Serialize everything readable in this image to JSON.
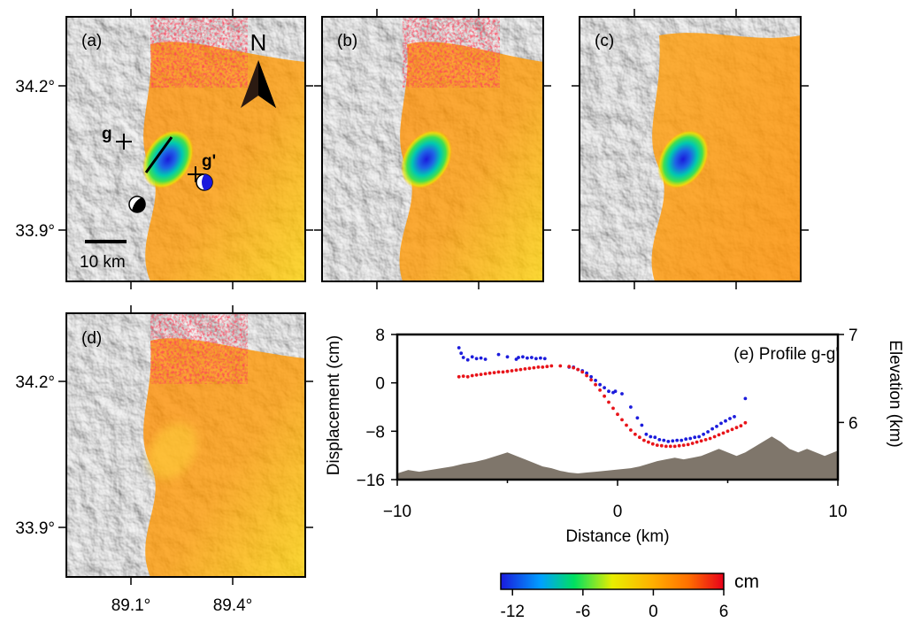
{
  "map_panels": [
    {
      "label": "(a)"
    },
    {
      "label": "(b)"
    },
    {
      "label": "(c)"
    },
    {
      "label": "(d)"
    }
  ],
  "map_axes": {
    "lat_labels": [
      "34.2°",
      "33.9°"
    ],
    "lon_labels": [
      "89.1°",
      "89.4°"
    ]
  },
  "panel_a_annotations": {
    "north": "N",
    "point_g": "g",
    "point_g_prime": "g'",
    "scale_bar": "10 km"
  },
  "colorbar": {
    "unit": "cm",
    "ticks": [
      "-12",
      "-6",
      "0",
      "6"
    ],
    "min": -13,
    "max": 6,
    "colors": [
      "#1a1adc",
      "#00c8ff",
      "#00e060",
      "#e8ee00",
      "#ffb000",
      "#ff7000",
      "#e8001a"
    ]
  },
  "chart_data": {
    "type": "scatter",
    "title": "(e) Profile g-g'",
    "xlabel": "Distance (km)",
    "ylabel": "Displacement (cm)",
    "y2label": "Elevation (km)",
    "xlim": [
      -10,
      10
    ],
    "ylim": [
      -16,
      8
    ],
    "y2lim": [
      5.35,
      7
    ],
    "x_ticks": [
      "−10",
      "0",
      "10"
    ],
    "y_ticks": [
      "8",
      "0",
      "−8",
      "−16"
    ],
    "y2_ticks": [
      "7",
      "6"
    ],
    "series": [
      {
        "color": "#1c1cdc",
        "points": [
          [
            -7.2,
            5.8
          ],
          [
            -7.1,
            4.9
          ],
          [
            -7.0,
            4.2
          ],
          [
            -6.8,
            3.8
          ],
          [
            -6.6,
            4.3
          ],
          [
            -6.4,
            4.0
          ],
          [
            -6.2,
            4.1
          ],
          [
            -6.0,
            3.9
          ],
          [
            -5.4,
            4.7
          ],
          [
            -5.0,
            4.3
          ],
          [
            -4.6,
            3.9
          ],
          [
            -4.5,
            4.2
          ],
          [
            -4.3,
            4.3
          ],
          [
            -4.1,
            4.1
          ],
          [
            -3.9,
            4.2
          ],
          [
            -3.7,
            4.0
          ],
          [
            -3.5,
            4.1
          ],
          [
            -3.3,
            4.0
          ],
          [
            -2.2,
            2.6
          ],
          [
            -2.0,
            2.6
          ],
          [
            -1.8,
            2.2
          ],
          [
            -1.6,
            2.0
          ],
          [
            -1.4,
            1.6
          ],
          [
            -1.2,
            1.0
          ],
          [
            -1.0,
            0.4
          ],
          [
            -0.8,
            -0.3
          ],
          [
            -0.6,
            -0.8
          ],
          [
            -0.4,
            -1.4
          ],
          [
            -0.2,
            -1.6
          ],
          [
            -0.1,
            -1.4
          ],
          [
            0.2,
            -1.8
          ],
          [
            0.6,
            -4.0
          ],
          [
            0.9,
            -5.8
          ],
          [
            1.1,
            -7.0
          ],
          [
            1.3,
            -8.5
          ],
          [
            1.5,
            -8.9
          ],
          [
            1.7,
            -9.0
          ],
          [
            1.9,
            -9.4
          ],
          [
            2.1,
            -9.5
          ],
          [
            2.3,
            -9.7
          ],
          [
            2.5,
            -9.6
          ],
          [
            2.7,
            -9.5
          ],
          [
            2.9,
            -9.5
          ],
          [
            3.1,
            -9.3
          ],
          [
            3.3,
            -9.2
          ],
          [
            3.5,
            -9.0
          ],
          [
            3.7,
            -8.9
          ],
          [
            3.9,
            -8.5
          ],
          [
            4.1,
            -8.1
          ],
          [
            4.3,
            -7.6
          ],
          [
            4.5,
            -7.2
          ],
          [
            4.7,
            -6.7
          ],
          [
            4.9,
            -6.3
          ],
          [
            5.1,
            -5.9
          ],
          [
            5.3,
            -5.6
          ],
          [
            5.8,
            -2.6
          ]
        ]
      },
      {
        "color": "#e8141a",
        "points": [
          [
            -7.2,
            1.0
          ],
          [
            -7.0,
            1.1
          ],
          [
            -6.8,
            1.0
          ],
          [
            -6.6,
            1.2
          ],
          [
            -6.4,
            1.3
          ],
          [
            -6.2,
            1.4
          ],
          [
            -6.0,
            1.5
          ],
          [
            -5.8,
            1.6
          ],
          [
            -5.6,
            1.7
          ],
          [
            -5.4,
            1.8
          ],
          [
            -5.2,
            1.8
          ],
          [
            -5.0,
            1.9
          ],
          [
            -4.8,
            2.0
          ],
          [
            -4.6,
            2.1
          ],
          [
            -4.4,
            2.2
          ],
          [
            -4.2,
            2.3
          ],
          [
            -4.0,
            2.4
          ],
          [
            -3.8,
            2.5
          ],
          [
            -3.6,
            2.6
          ],
          [
            -3.4,
            2.6
          ],
          [
            -3.2,
            2.7
          ],
          [
            -3.0,
            2.8
          ],
          [
            -2.6,
            2.8
          ],
          [
            -2.2,
            2.7
          ],
          [
            -2.0,
            2.5
          ],
          [
            -1.8,
            2.2
          ],
          [
            -1.6,
            1.8
          ],
          [
            -1.4,
            1.2
          ],
          [
            -1.2,
            0.5
          ],
          [
            -1.0,
            -0.3
          ],
          [
            -0.8,
            -1.2
          ],
          [
            -0.6,
            -2.2
          ],
          [
            -0.4,
            -3.2
          ],
          [
            -0.2,
            -4.2
          ],
          [
            0.0,
            -5.2
          ],
          [
            0.2,
            -6.1
          ],
          [
            0.4,
            -7.0
          ],
          [
            0.6,
            -7.8
          ],
          [
            0.8,
            -8.5
          ],
          [
            1.0,
            -9.0
          ],
          [
            1.2,
            -9.5
          ],
          [
            1.4,
            -9.8
          ],
          [
            1.6,
            -10.1
          ],
          [
            1.8,
            -10.3
          ],
          [
            2.0,
            -10.4
          ],
          [
            2.2,
            -10.5
          ],
          [
            2.4,
            -10.5
          ],
          [
            2.6,
            -10.5
          ],
          [
            2.8,
            -10.4
          ],
          [
            3.0,
            -10.3
          ],
          [
            3.2,
            -10.2
          ],
          [
            3.4,
            -10.0
          ],
          [
            3.6,
            -9.8
          ],
          [
            3.8,
            -9.6
          ],
          [
            4.0,
            -9.4
          ],
          [
            4.2,
            -9.2
          ],
          [
            4.4,
            -8.9
          ],
          [
            4.6,
            -8.6
          ],
          [
            4.8,
            -8.3
          ],
          [
            5.0,
            -8.0
          ],
          [
            5.2,
            -7.7
          ],
          [
            5.4,
            -7.4
          ],
          [
            5.6,
            -7.1
          ],
          [
            5.8,
            -6.6
          ]
        ]
      }
    ],
    "elevation": {
      "color": "#7f766b",
      "points": [
        [
          -10,
          5.42
        ],
        [
          -9.5,
          5.46
        ],
        [
          -9.0,
          5.44
        ],
        [
          -8.5,
          5.46
        ],
        [
          -8.0,
          5.48
        ],
        [
          -7.5,
          5.5
        ],
        [
          -7.0,
          5.53
        ],
        [
          -6.5,
          5.55
        ],
        [
          -6.0,
          5.58
        ],
        [
          -5.5,
          5.62
        ],
        [
          -5.0,
          5.66
        ],
        [
          -4.6,
          5.62
        ],
        [
          -4.2,
          5.58
        ],
        [
          -3.8,
          5.54
        ],
        [
          -3.4,
          5.5
        ],
        [
          -3.0,
          5.48
        ],
        [
          -2.6,
          5.45
        ],
        [
          -2.2,
          5.43
        ],
        [
          -1.8,
          5.42
        ],
        [
          -1.4,
          5.43
        ],
        [
          -1.0,
          5.44
        ],
        [
          -0.6,
          5.45
        ],
        [
          -0.2,
          5.46
        ],
        [
          0.2,
          5.47
        ],
        [
          0.6,
          5.48
        ],
        [
          1.0,
          5.5
        ],
        [
          1.4,
          5.53
        ],
        [
          1.8,
          5.56
        ],
        [
          2.2,
          5.58
        ],
        [
          2.6,
          5.6
        ],
        [
          3.0,
          5.58
        ],
        [
          3.4,
          5.6
        ],
        [
          3.8,
          5.62
        ],
        [
          4.2,
          5.66
        ],
        [
          4.6,
          5.7
        ],
        [
          5.0,
          5.66
        ],
        [
          5.4,
          5.62
        ],
        [
          5.8,
          5.66
        ],
        [
          6.2,
          5.72
        ],
        [
          6.6,
          5.78
        ],
        [
          7.0,
          5.84
        ],
        [
          7.4,
          5.78
        ],
        [
          7.8,
          5.7
        ],
        [
          8.2,
          5.66
        ],
        [
          8.6,
          5.7
        ],
        [
          9.0,
          5.66
        ],
        [
          9.4,
          5.62
        ],
        [
          9.8,
          5.66
        ],
        [
          10,
          5.68
        ]
      ]
    }
  }
}
